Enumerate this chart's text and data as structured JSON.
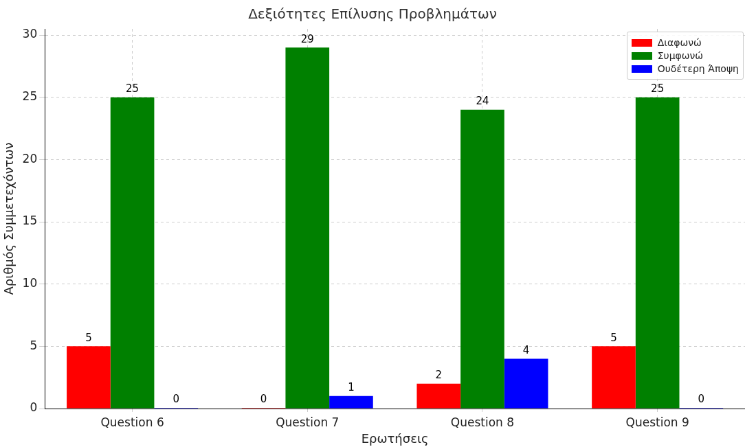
{
  "chart_data": {
    "type": "bar",
    "title": "Δεξιότητες Επίλυσης Προβλημάτων",
    "xlabel": "Ερωτήσεις",
    "ylabel": "Αριθμός Συμμετεχόντων",
    "categories": [
      "Question 6",
      "Question 7",
      "Question 8",
      "Question 9"
    ],
    "series": [
      {
        "name": "Διαφωνώ",
        "color": "#ff0000",
        "values": [
          5,
          0,
          2,
          5
        ]
      },
      {
        "name": "Συμφωνώ",
        "color": "#008000",
        "values": [
          25,
          29,
          24,
          25
        ]
      },
      {
        "name": "Ουδέτερη Άποψη",
        "color": "#0000ff",
        "values": [
          0,
          1,
          4,
          0
        ]
      }
    ],
    "ylim": [
      0,
      30.5
    ],
    "yticks": [
      0,
      5,
      10,
      15,
      20,
      25,
      30
    ],
    "grid": true,
    "legend": "top right",
    "data_labels": true
  }
}
